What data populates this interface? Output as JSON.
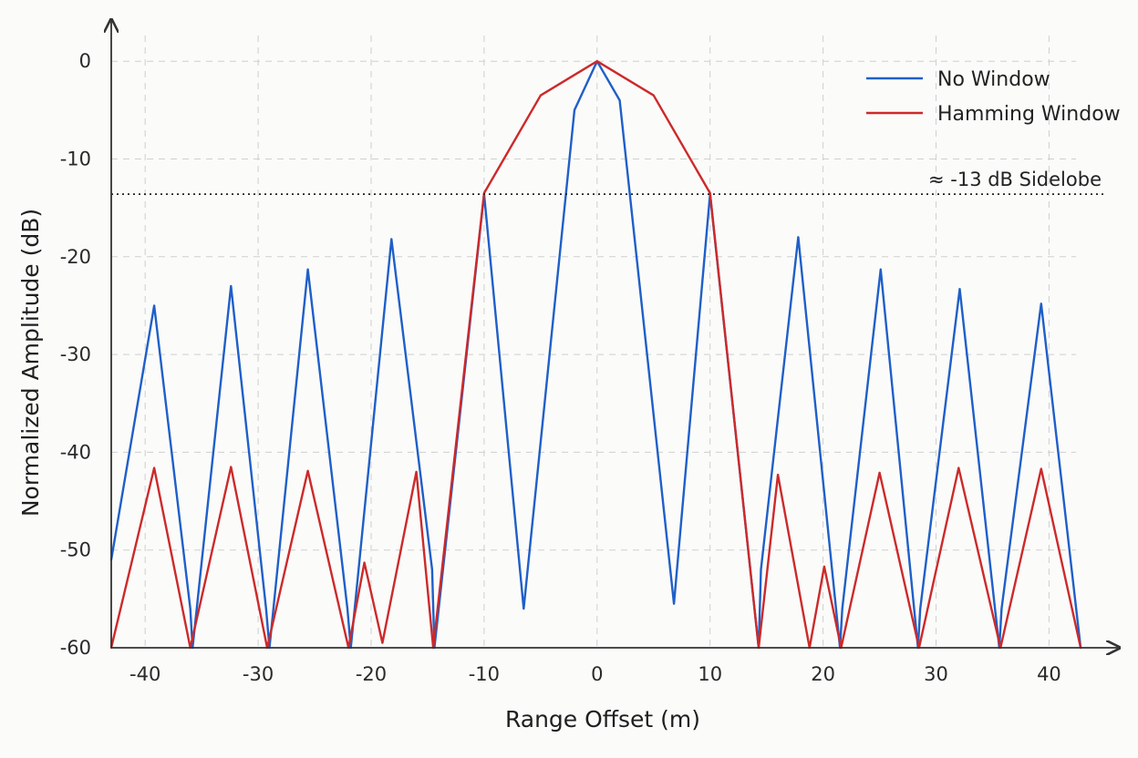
{
  "chart_data": {
    "type": "line",
    "title": "",
    "xlabel": "Range Offset (m)",
    "ylabel": "Normalized Amplitude (dB)",
    "xlim": [
      -43,
      44
    ],
    "ylim": [
      -60,
      3
    ],
    "xticks": [
      -40,
      -30,
      -20,
      -10,
      0,
      10,
      20,
      30,
      40
    ],
    "xtick_labels": [
      "-40",
      "-30",
      "-20",
      "-10",
      "0",
      "10",
      "20",
      "30",
      "40"
    ],
    "yticks": [
      0,
      -10,
      -20,
      -30,
      -40,
      -50,
      -60
    ],
    "ytick_labels": [
      "0",
      "-10",
      "-20",
      "-30",
      "-40",
      "-50",
      "-60"
    ],
    "grid": true,
    "legend_position": "top-right",
    "colors": {
      "no_window": "#1f5fc8",
      "hamming": "#cc2a2a"
    },
    "series": [
      {
        "name": "No Window",
        "color": "#1f5fc8",
        "x": [
          -43,
          -39.2,
          -36,
          -35.8,
          -32.4,
          -29.3,
          -29.0,
          -25.6,
          -22.1,
          -21.8,
          -18.2,
          -14.6,
          -14.4,
          -10,
          -6.5,
          -6.5,
          -2,
          0,
          2,
          6.8,
          6.8,
          10,
          14.3,
          14.5,
          17.8,
          21.5,
          21.7,
          25.1,
          28.4,
          28.6,
          32.1,
          35.6,
          35.8,
          39.3,
          42.8
        ],
        "y": [
          -51,
          -25,
          -56,
          -60,
          -23,
          -56,
          -60,
          -21.3,
          -56,
          -60,
          -18.2,
          -52,
          -60,
          -13.6,
          -56,
          -56,
          -5,
          0,
          -4,
          -55.5,
          -55.5,
          -13.6,
          -60,
          -52,
          -18,
          -60,
          -56,
          -21.3,
          -60,
          -56,
          -23.3,
          -60,
          -56,
          -24.8,
          -60
        ]
      },
      {
        "name": "Hamming Window",
        "color": "#cc2a2a",
        "x": [
          -43,
          -39.2,
          -36,
          -32.4,
          -29.2,
          -25.6,
          -22,
          -20.6,
          -19,
          -16,
          -14.5,
          -10,
          -5,
          0,
          5,
          10,
          14.3,
          16,
          18.8,
          20.1,
          21.6,
          25,
          28.5,
          32,
          35.7,
          39.3,
          42.8
        ],
        "y": [
          -60,
          -41.6,
          -60,
          -41.5,
          -60,
          -41.9,
          -60,
          -51.3,
          -59.5,
          -42,
          -60,
          -13.5,
          -3.5,
          0,
          -3.5,
          -13.5,
          -60,
          -42.3,
          -60,
          -51.7,
          -60,
          -42.1,
          -60,
          -41.6,
          -60,
          -41.7,
          -60
        ]
      }
    ],
    "annotations": [
      {
        "text": "≈ -13 dB Sidelobe",
        "y": -13.6,
        "style": "dotted-horizontal-line"
      }
    ]
  }
}
